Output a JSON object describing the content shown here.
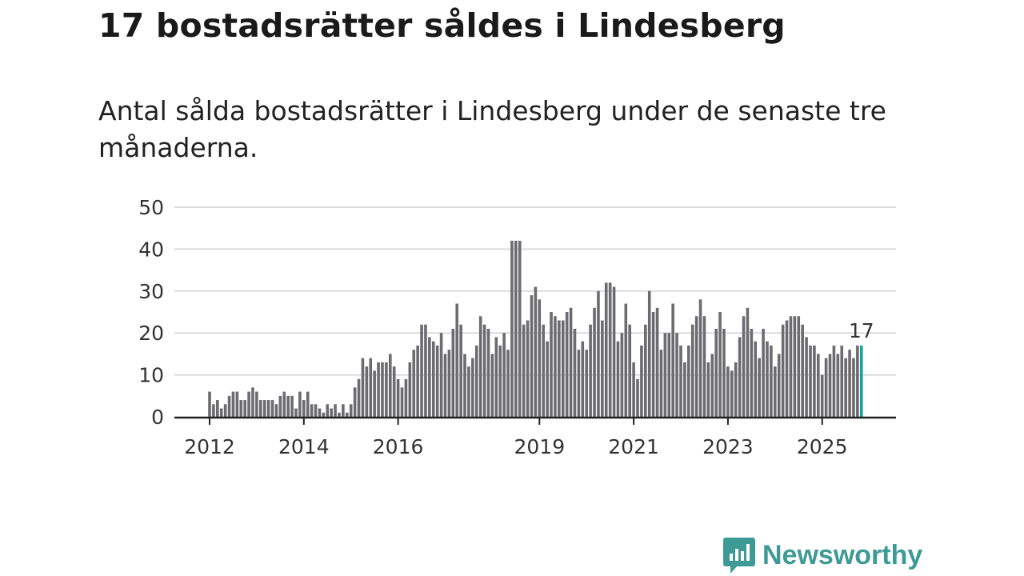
{
  "title": "17 bostadsrätter såldes i Lindesberg",
  "subtitle": "Antal sålda bostadsrätter i Lindesberg under de senaste tre månaderna.",
  "brand": {
    "name": "Newsworthy",
    "color": "#3e9a94"
  },
  "chart_data": {
    "type": "bar",
    "title": "Antal sålda bostadsrätter i Lindesberg",
    "xlabel": "",
    "ylabel": "",
    "ylim": [
      0,
      50
    ],
    "yticks": [
      0,
      10,
      20,
      30,
      40,
      50
    ],
    "xticks": [
      2012,
      2014,
      2016,
      2019,
      2021,
      2023,
      2025
    ],
    "grid": true,
    "start": "2012-01",
    "frequency": "monthly",
    "bar_color": "#6c6b70",
    "highlight_color": "#17a2a0",
    "highlight_label": "17",
    "values": [
      6,
      3,
      4,
      2,
      3,
      5,
      6,
      6,
      4,
      4,
      6,
      7,
      6,
      4,
      4,
      4,
      4,
      3,
      5,
      6,
      5,
      5,
      2,
      6,
      4,
      6,
      3,
      3,
      2,
      1,
      3,
      2,
      3,
      1,
      3,
      1,
      3,
      7,
      9,
      14,
      12,
      14,
      11,
      13,
      13,
      13,
      15,
      12,
      9,
      7,
      9,
      13,
      16,
      17,
      22,
      22,
      19,
      18,
      17,
      20,
      15,
      16,
      21,
      27,
      22,
      15,
      12,
      14,
      17,
      24,
      22,
      21,
      15,
      19,
      17,
      20,
      16,
      42,
      42,
      42,
      22,
      23,
      29,
      31,
      28,
      22,
      18,
      25,
      24,
      23,
      23,
      25,
      26,
      21,
      16,
      18,
      16,
      22,
      26,
      30,
      23,
      32,
      32,
      31,
      18,
      20,
      27,
      22,
      13,
      9,
      17,
      22,
      30,
      25,
      26,
      16,
      20,
      20,
      27,
      20,
      17,
      13,
      17,
      22,
      24,
      28,
      24,
      13,
      15,
      21,
      25,
      21,
      12,
      11,
      13,
      19,
      24,
      26,
      21,
      18,
      14,
      21,
      18,
      17,
      12,
      15,
      22,
      23,
      24,
      24,
      24,
      22,
      19,
      17,
      17,
      15,
      10,
      14,
      15,
      17,
      15,
      17,
      14,
      16,
      14,
      17,
      17
    ]
  }
}
